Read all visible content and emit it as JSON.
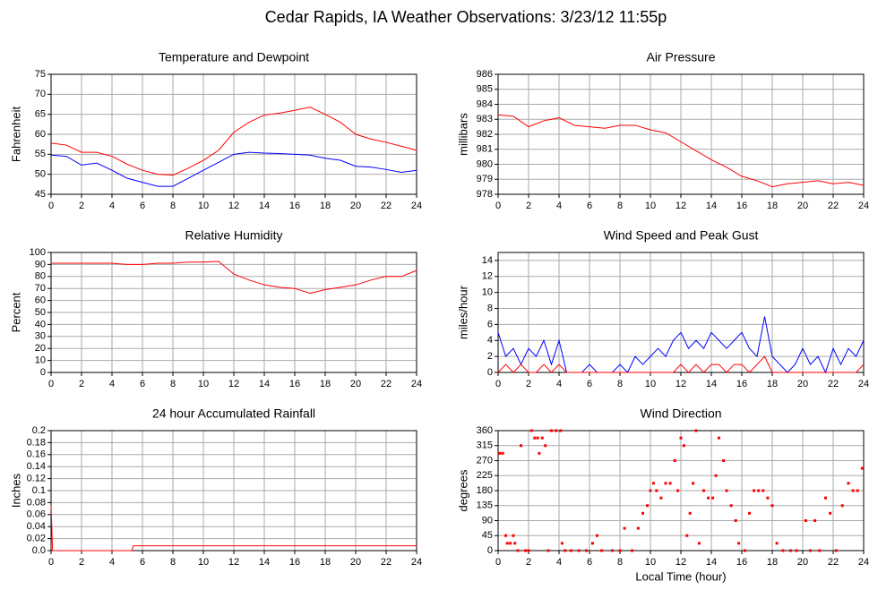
{
  "title": "Cedar Rapids, IA Weather Observations: 3/23/12 11:55p",
  "xlabel": "Local Time (hour)",
  "chart_data": [
    {
      "type": "line",
      "title": "Temperature and Dewpoint",
      "ylabel": "Fahrenheit",
      "xlim": [
        0,
        24
      ],
      "xticks": [
        0,
        2,
        4,
        6,
        8,
        10,
        12,
        14,
        16,
        18,
        20,
        22,
        24
      ],
      "ylim": [
        45,
        75
      ],
      "yticks": [
        45,
        50,
        55,
        60,
        65,
        70,
        75
      ],
      "grid": true,
      "x": [
        0,
        1,
        2,
        3,
        4,
        5,
        6,
        7,
        8,
        9,
        10,
        11,
        12,
        13,
        14,
        15,
        16,
        17,
        18,
        19,
        20,
        21,
        22,
        23,
        24
      ],
      "series": [
        {
          "color": "#ff0000",
          "values": [
            57.8,
            57.3,
            55.5,
            55.5,
            54.5,
            52.5,
            51,
            50,
            49.8,
            51.5,
            53.5,
            56,
            60.5,
            63,
            64.8,
            65.3,
            66,
            66.8,
            65,
            63,
            60,
            58.8,
            58,
            57,
            56
          ]
        },
        {
          "color": "#0000ff",
          "values": [
            54.8,
            54.5,
            52.3,
            52.8,
            51,
            49,
            48,
            47,
            47,
            49,
            51,
            53,
            55,
            55.5,
            55.3,
            55.2,
            55,
            54.8,
            54,
            53.5,
            52,
            51.8,
            51.2,
            50.5,
            51
          ]
        }
      ]
    },
    {
      "type": "line",
      "title": "Air Pressure",
      "ylabel": "millibars",
      "xlim": [
        0,
        24
      ],
      "xticks": [
        0,
        2,
        4,
        6,
        8,
        10,
        12,
        14,
        16,
        18,
        20,
        22,
        24
      ],
      "ylim": [
        978,
        986
      ],
      "yticks": [
        978,
        979,
        980,
        981,
        982,
        983,
        984,
        985,
        986
      ],
      "grid": true,
      "x": [
        0,
        1,
        2,
        3,
        4,
        5,
        6,
        7,
        8,
        9,
        10,
        11,
        12,
        13,
        14,
        15,
        16,
        17,
        18,
        19,
        20,
        21,
        22,
        23,
        24
      ],
      "series": [
        {
          "color": "#ff0000",
          "values": [
            983.3,
            983.2,
            982.5,
            982.9,
            983.1,
            982.6,
            982.5,
            982.4,
            982.6,
            982.6,
            982.3,
            982.1,
            981.5,
            980.9,
            980.3,
            979.8,
            979.2,
            978.9,
            978.5,
            978.7,
            978.8,
            978.9,
            978.7,
            978.8,
            978.6
          ]
        }
      ]
    },
    {
      "type": "line",
      "title": "Relative Humidity",
      "ylabel": "Percent",
      "xlim": [
        0,
        24
      ],
      "xticks": [
        0,
        2,
        4,
        6,
        8,
        10,
        12,
        14,
        16,
        18,
        20,
        22,
        24
      ],
      "ylim": [
        0,
        100
      ],
      "yticks": [
        0,
        10,
        20,
        30,
        40,
        50,
        60,
        70,
        80,
        90,
        100
      ],
      "grid": true,
      "x": [
        0,
        1,
        2,
        3,
        4,
        5,
        6,
        7,
        8,
        9,
        10,
        11,
        12,
        13,
        14,
        15,
        16,
        17,
        18,
        19,
        20,
        21,
        22,
        23,
        24
      ],
      "series": [
        {
          "color": "#ff0000",
          "values": [
            91,
            91,
            91,
            91,
            91,
            90,
            90,
            91,
            91,
            92,
            92,
            92.5,
            82,
            77,
            73,
            71,
            70,
            66,
            69,
            71,
            73,
            77,
            80,
            80,
            85
          ]
        }
      ]
    },
    {
      "type": "line",
      "title": "Wind Speed and Peak Gust",
      "ylabel": "miles/hour",
      "xlim": [
        0,
        24
      ],
      "xticks": [
        0,
        2,
        4,
        6,
        8,
        10,
        12,
        14,
        16,
        18,
        20,
        22,
        24
      ],
      "ylim": [
        0,
        15
      ],
      "yticks": [
        0,
        2,
        4,
        6,
        8,
        10,
        12,
        14
      ],
      "grid": true,
      "x": [
        0,
        0.5,
        1,
        1.5,
        2,
        2.5,
        3,
        3.5,
        4,
        4.5,
        5,
        5.5,
        6,
        6.5,
        7,
        7.5,
        8,
        8.5,
        9,
        9.5,
        10,
        10.5,
        11,
        11.5,
        12,
        12.5,
        13,
        13.5,
        14,
        14.5,
        15,
        15.5,
        16,
        16.5,
        17,
        17.5,
        18,
        18.5,
        19,
        19.5,
        20,
        20.5,
        21,
        21.5,
        22,
        22.5,
        23,
        23.5,
        24
      ],
      "series": [
        {
          "color": "#0000ff",
          "values": [
            5,
            2,
            3,
            1,
            3,
            2,
            4,
            1,
            4,
            0,
            0,
            0,
            1,
            0,
            0,
            0,
            1,
            0,
            2,
            1,
            2,
            3,
            2,
            4,
            5,
            3,
            4,
            3,
            5,
            4,
            3,
            4,
            5,
            3,
            2,
            7,
            2,
            1,
            0,
            1,
            3,
            1,
            2,
            0,
            3,
            1,
            3,
            2,
            4
          ]
        },
        {
          "color": "#ff0000",
          "values": [
            0,
            1,
            0,
            1,
            0,
            0,
            1,
            0,
            1,
            0,
            0,
            0,
            0,
            0,
            0,
            0,
            0,
            0,
            0,
            0,
            0,
            0,
            0,
            0,
            1,
            0,
            1,
            0,
            1,
            1,
            0,
            1,
            1,
            0,
            1,
            2,
            0,
            0,
            0,
            0,
            0,
            0,
            0,
            0,
            0,
            0,
            0,
            0,
            1
          ]
        }
      ]
    },
    {
      "type": "line",
      "title": "24 hour Accumulated Rainfall",
      "ylabel": "Inches",
      "xlim": [
        0,
        24
      ],
      "xticks": [
        0,
        2,
        4,
        6,
        8,
        10,
        12,
        14,
        16,
        18,
        20,
        22,
        24
      ],
      "ylim": [
        0,
        0.2
      ],
      "yticks": [
        {
          "value": 0,
          "label": "0.0"
        },
        0.02,
        0.04,
        0.06,
        0.08,
        0.1,
        0.12,
        0.14,
        0.16,
        0.18,
        0.2
      ],
      "grid": true,
      "x": [
        0,
        0.1,
        5.3,
        5.4,
        24
      ],
      "series": [
        {
          "color": "#ff0000",
          "values": [
            0.075,
            0,
            0,
            0.008,
            0.008
          ]
        }
      ]
    },
    {
      "type": "scatter",
      "title": "Wind Direction",
      "ylabel": "degrees",
      "xlim": [
        0,
        24
      ],
      "xticks": [
        0,
        2,
        4,
        6,
        8,
        10,
        12,
        14,
        16,
        18,
        20,
        22,
        24
      ],
      "ylim": [
        0,
        360
      ],
      "yticks": [
        0,
        45,
        90,
        135,
        180,
        225,
        270,
        315,
        360
      ],
      "grid": true,
      "x": [
        0.1,
        0.3,
        0.5,
        0.6,
        0.8,
        1,
        1.1,
        1.3,
        1.5,
        1.8,
        2,
        2.2,
        2.4,
        2.6,
        2.7,
        2.9,
        3.1,
        3.3,
        3.5,
        3.8,
        4.1,
        4.2,
        4.4,
        4.8,
        5.3,
        5.8,
        6.2,
        6.5,
        6.8,
        7.5,
        8,
        8.3,
        8.8,
        9.2,
        9.5,
        9.8,
        10,
        10.2,
        10.4,
        10.7,
        11,
        11.3,
        11.6,
        11.8,
        12,
        12.2,
        12.4,
        12.6,
        12.8,
        13,
        13.2,
        13.5,
        13.8,
        14.1,
        14.3,
        14.5,
        14.8,
        15,
        15.3,
        15.6,
        15.8,
        16.2,
        16.5,
        16.8,
        17.1,
        17.4,
        17.7,
        18,
        18.3,
        18.7,
        19.2,
        19.6,
        20.2,
        20.5,
        20.8,
        21.1,
        21.5,
        21.8,
        22.2,
        22.6,
        23,
        23.3,
        23.6,
        23.9
      ],
      "series": [
        {
          "color": "#ff0000",
          "values": [
            292,
            292,
            45,
            22,
            22,
            45,
            22,
            0,
            315,
            0,
            0,
            360,
            338,
            338,
            292,
            338,
            315,
            0,
            360,
            360,
            360,
            22,
            0,
            0,
            0,
            0,
            22,
            45,
            0,
            0,
            0,
            67,
            0,
            67,
            112,
            135,
            180,
            202,
            180,
            158,
            202,
            202,
            270,
            180,
            338,
            315,
            45,
            112,
            202,
            360,
            22,
            180,
            158,
            158,
            225,
            338,
            270,
            180,
            135,
            90,
            22,
            0,
            112,
            180,
            180,
            180,
            158,
            135,
            22,
            0,
            0,
            0,
            90,
            0,
            90,
            0,
            158,
            112,
            0,
            135,
            202,
            180,
            180,
            247
          ]
        }
      ]
    }
  ]
}
